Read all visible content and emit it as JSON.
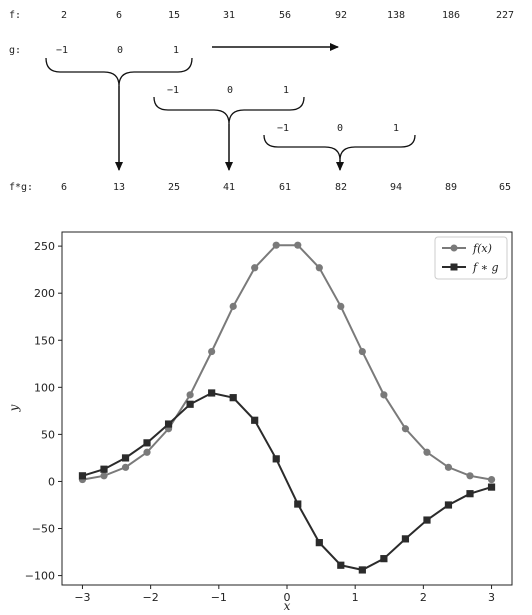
{
  "diagram": {
    "f_label": "f:",
    "g_label": "g:",
    "fg_label": "f*g:",
    "f_values": [
      "2",
      "6",
      "15",
      "31",
      "56",
      "92",
      "138",
      "186",
      "227"
    ],
    "kernels": [
      [
        "−1",
        "0",
        "1"
      ],
      [
        "−1",
        "0",
        "1"
      ],
      [
        "−1",
        "0",
        "1"
      ]
    ],
    "fg_values": [
      "6",
      "13",
      "25",
      "41",
      "61",
      "82",
      "94",
      "89",
      "65"
    ]
  },
  "chart_data": {
    "type": "line",
    "xlabel": "x",
    "ylabel": "y",
    "xlim": [
      -3.3,
      3.3
    ],
    "ylim": [
      -110,
      265
    ],
    "xticks": [
      -3,
      -2,
      -1,
      0,
      1,
      2,
      3
    ],
    "yticks": [
      -100,
      -50,
      0,
      50,
      100,
      150,
      200,
      250
    ],
    "xtick_labels": [
      "−3",
      "−2",
      "−1",
      "0",
      "1",
      "2",
      "3"
    ],
    "ytick_labels": [
      "−100",
      "−50",
      "0",
      "50",
      "100",
      "150",
      "200",
      "250"
    ],
    "legend_position": "top-right",
    "series": [
      {
        "name": "f(x)",
        "color": "#7a7a7a",
        "marker": "circle",
        "x": [
          -3.0,
          -2.684,
          -2.368,
          -2.053,
          -1.737,
          -1.421,
          -1.105,
          -0.789,
          -0.474,
          -0.158,
          0.158,
          0.474,
          0.789,
          1.105,
          1.421,
          1.737,
          2.053,
          2.368,
          2.684,
          3.0
        ],
        "y": [
          2,
          6,
          15,
          31,
          56,
          92,
          138,
          186,
          227,
          251,
          251,
          227,
          186,
          138,
          92,
          56,
          31,
          15,
          6,
          2
        ]
      },
      {
        "name": "f ∗ g",
        "color": "#2b2b2b",
        "marker": "square",
        "x": [
          -3.0,
          -2.684,
          -2.368,
          -2.053,
          -1.737,
          -1.421,
          -1.105,
          -0.789,
          -0.474,
          -0.158,
          0.158,
          0.474,
          0.789,
          1.105,
          1.421,
          1.737,
          2.053,
          2.368,
          2.684,
          3.0
        ],
        "y": [
          6,
          13,
          25,
          41,
          61,
          82,
          94,
          89,
          65,
          24,
          -24,
          -65,
          -89,
          -94,
          -82,
          -61,
          -41,
          -25,
          -13,
          -6
        ]
      }
    ]
  }
}
